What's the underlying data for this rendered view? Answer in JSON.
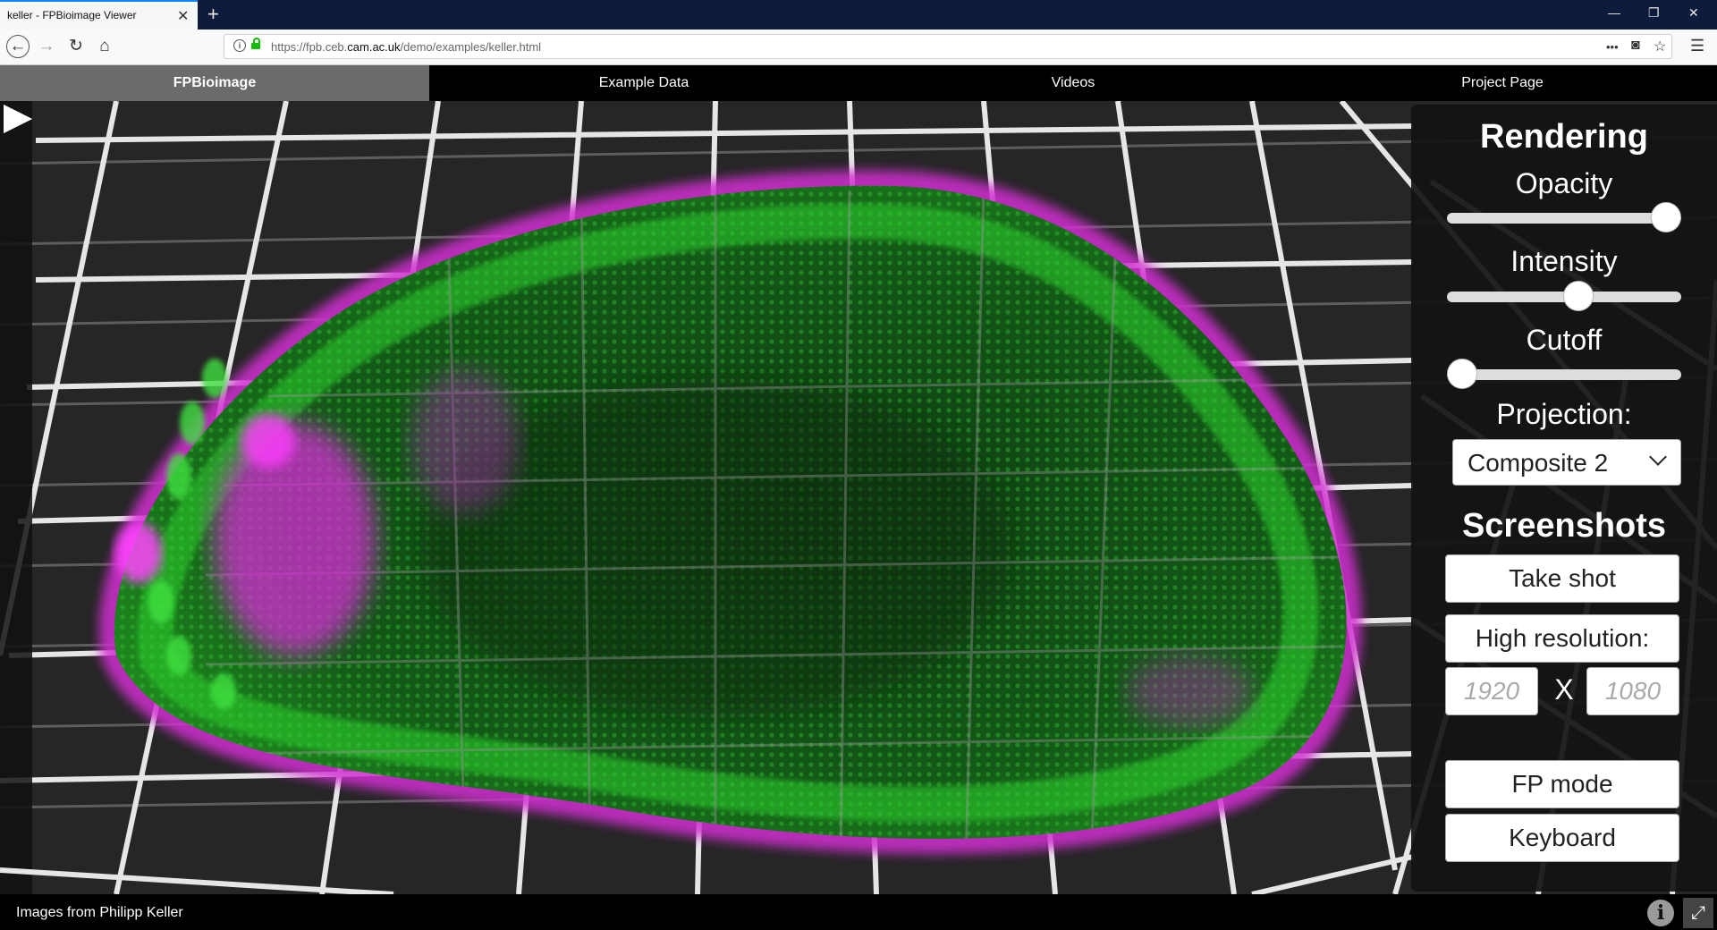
{
  "browser": {
    "tab_title": "keller - FPBioimage Viewer",
    "tab_close": "✕",
    "new_tab": "+",
    "url_prefix": "https://fpb.ceb.",
    "url_domain": "cam.ac.uk",
    "url_path": "/demo/examples/keller.html",
    "more_dots": "•••",
    "window_min": "—",
    "window_restore": "❐",
    "window_close": "✕"
  },
  "sitenav": {
    "tabs": [
      {
        "label": "FPBioimage"
      },
      {
        "label": "Example Data"
      },
      {
        "label": "Videos"
      },
      {
        "label": "Project Page"
      }
    ]
  },
  "panel": {
    "rendering_title": "Rendering",
    "opacity_label": "Opacity",
    "opacity_value": 1.0,
    "intensity_label": "Intensity",
    "intensity_value": 0.57,
    "cutoff_label": "Cutoff",
    "cutoff_value": 0.0,
    "projection_label": "Projection:",
    "projection_value": "Composite 2",
    "screenshots_title": "Screenshots",
    "take_shot_label": "Take shot",
    "high_res_label": "High resolution:",
    "width_placeholder": "1920",
    "height_placeholder": "1080",
    "x_label": "X",
    "fp_mode_label": "FP mode",
    "keyboard_label": "Keyboard"
  },
  "footer": {
    "credit": "Images from Philipp Keller",
    "info_label": "i",
    "fullscreen_label": "⤢"
  },
  "colors": {
    "green_channel": "#2dcc2d",
    "magenta_channel": "#e22ee2",
    "background": "#2a2a2a"
  }
}
